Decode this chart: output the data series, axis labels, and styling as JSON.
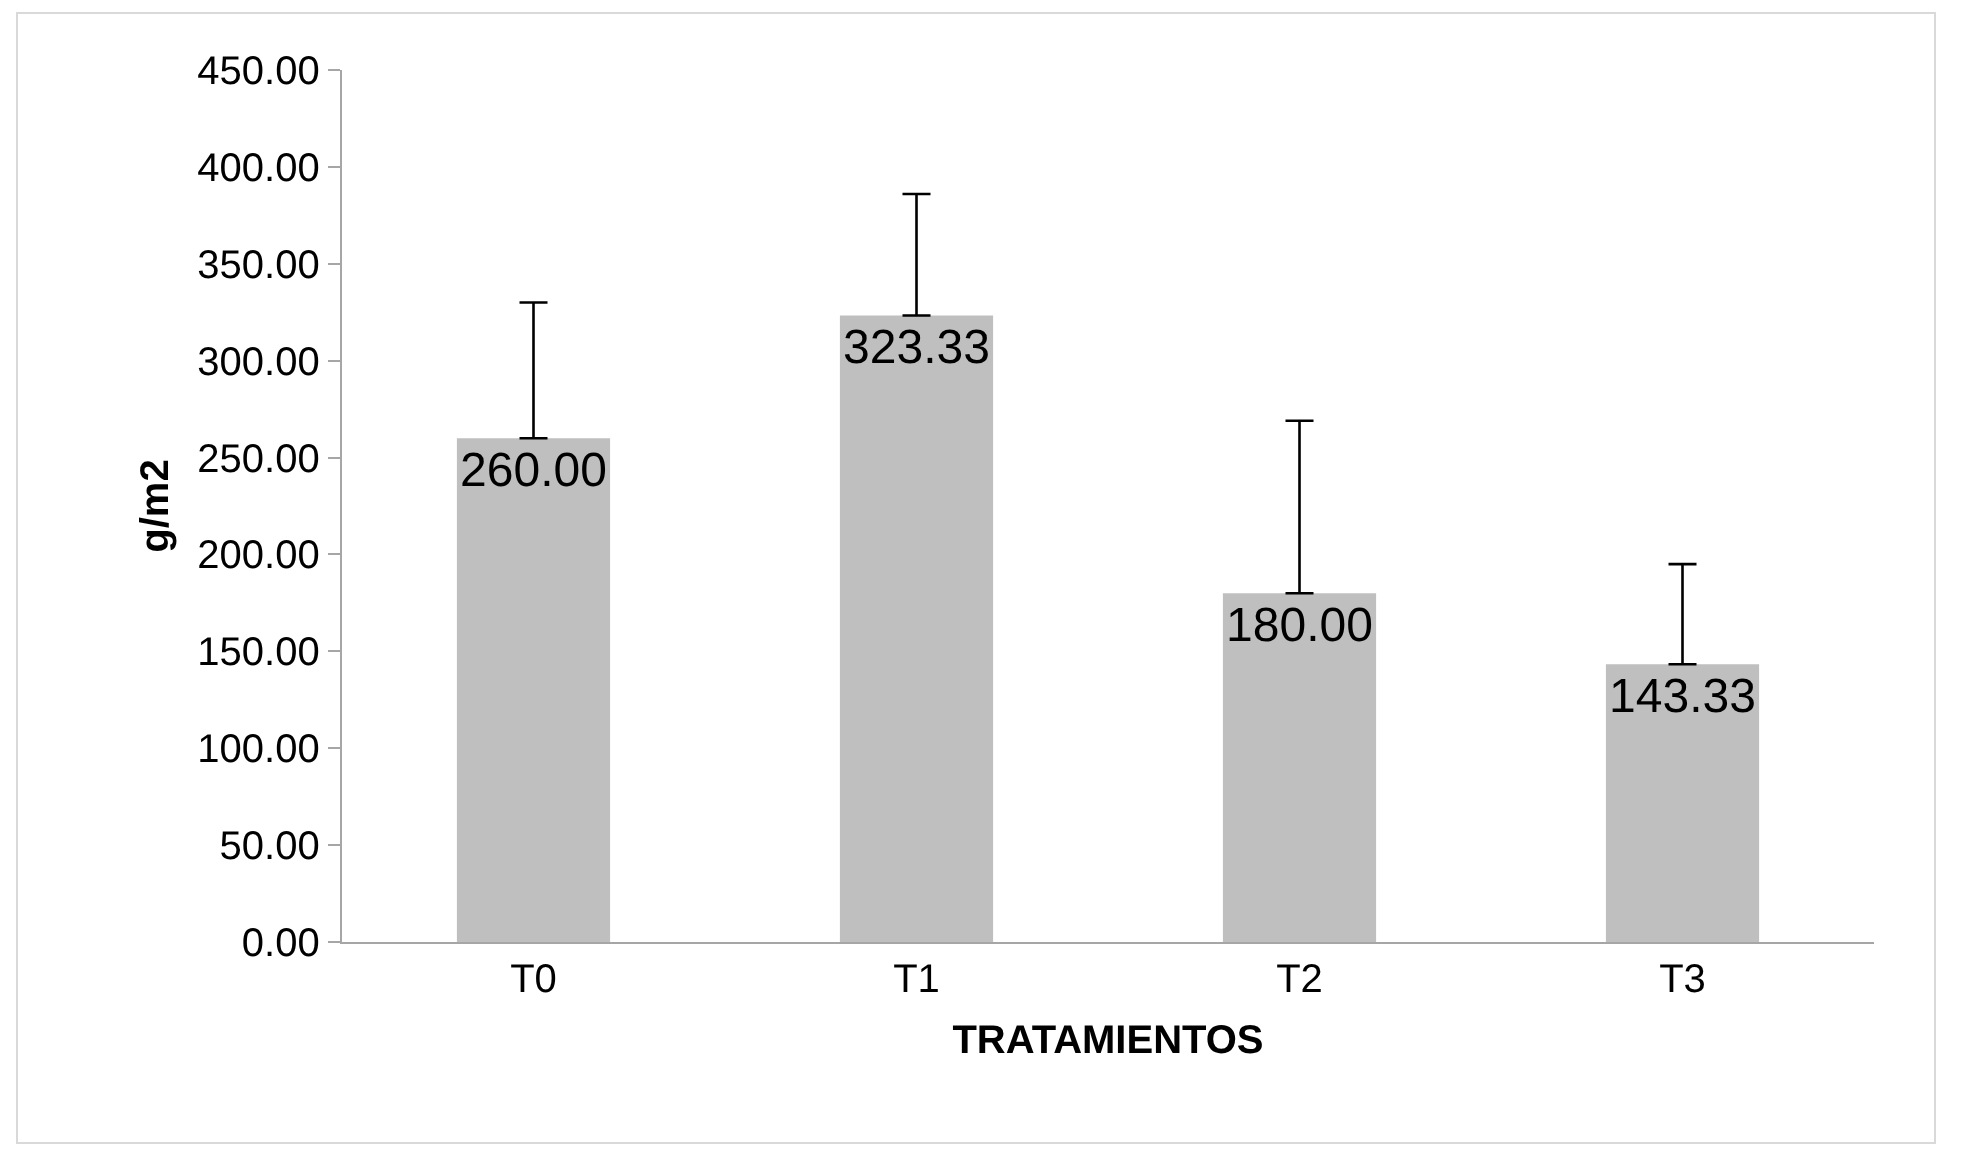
{
  "chart_data": {
    "type": "bar",
    "xlabel": "TRATAMIENTOS",
    "ylabel": "g/m2",
    "categories": [
      "T0",
      "T1",
      "T2",
      "T3"
    ],
    "values": [
      260.0,
      323.33,
      180.0,
      143.33
    ],
    "color": "#bfbfbf",
    "errors": [
      [
        260.0,
        330
      ],
      [
        323.33,
        386
      ],
      [
        180.0,
        269
      ],
      [
        143.33,
        195
      ]
    ],
    "value_labels": [
      "260.00",
      "323.33",
      "180.00",
      "143.33"
    ],
    "ylim": [
      0,
      450
    ],
    "yticks": [
      {
        "value": 0,
        "label": "0.00"
      },
      {
        "value": 50,
        "label": "50.00"
      },
      {
        "value": 100,
        "label": "100.00"
      },
      {
        "value": 150,
        "label": "150.00"
      },
      {
        "value": 200,
        "label": "200.00"
      },
      {
        "value": 250,
        "label": "250.00"
      },
      {
        "value": 300,
        "label": "300.00"
      },
      {
        "value": 350,
        "label": "350.00"
      },
      {
        "value": 400,
        "label": "400.00"
      },
      {
        "value": 450,
        "label": "450.00"
      }
    ],
    "grid": false,
    "legend": false
  }
}
